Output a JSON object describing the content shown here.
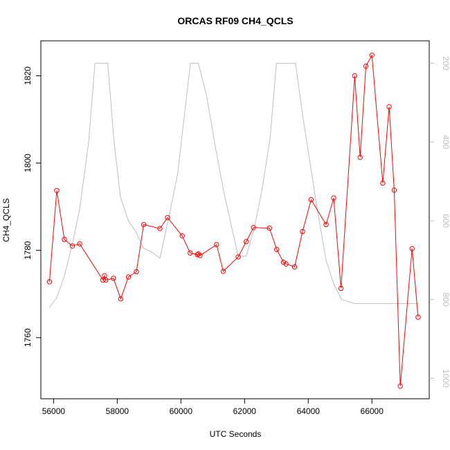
{
  "chart_data": {
    "type": "line",
    "title": "ORCAS RF09 CH4_QCLS",
    "xlabel": "UTC Seconds",
    "ylabel": "CH4_QCLS",
    "xlim": [
      55600,
      67800
    ],
    "ylim": [
      1746,
      1828
    ],
    "y2lim": [
      1052,
      143
    ],
    "x_ticks": [
      56000,
      58000,
      60000,
      62000,
      64000,
      66000
    ],
    "y_ticks": [
      1760,
      1780,
      1800,
      1820
    ],
    "y2_ticks": [
      200,
      400,
      600,
      800,
      1000
    ],
    "grid": false,
    "colors": {
      "main": "#ff0000",
      "secondary": "#bebebe"
    },
    "series": [
      {
        "axis": "left",
        "color": "#ff0000",
        "markers": "open-circle",
        "x": [
          55870,
          56100,
          56340,
          56590,
          56820,
          57550,
          57600,
          57640,
          57880,
          58110,
          58350,
          58600,
          58830,
          59340,
          59580,
          60040,
          60290,
          60520,
          60550,
          60600,
          61120,
          61330,
          61800,
          62050,
          62280,
          62780,
          63010,
          63220,
          63300,
          63570,
          63820,
          64090,
          64560,
          64800,
          65030,
          65460,
          65630,
          65810,
          66000,
          66340,
          66540,
          66700,
          66890,
          67260,
          67450
        ],
        "y": [
          1772.8,
          1793.7,
          1782.5,
          1781.0,
          1781.5,
          1773.2,
          1774.2,
          1773.2,
          1773.6,
          1768.9,
          1773.9,
          1775.1,
          1785.9,
          1785.0,
          1787.5,
          1783.3,
          1779.4,
          1779.0,
          1779.2,
          1778.8,
          1781.3,
          1775.2,
          1778.5,
          1782.0,
          1785.2,
          1785.1,
          1780.2,
          1777.3,
          1776.9,
          1776.2,
          1784.3,
          1791.6,
          1785.9,
          1792.0,
          1771.3,
          1820.0,
          1801.3,
          1822.2,
          1824.7,
          1795.4,
          1812.9,
          1793.8,
          1748.9,
          1780.4,
          1764.7
        ]
      },
      {
        "axis": "right",
        "color": "#bebebe",
        "markers": "none",
        "x": [
          55870,
          56100,
          56340,
          56590,
          56820,
          57100,
          57300,
          57700,
          57900,
          58100,
          58350,
          58600,
          58830,
          59100,
          59340,
          59600,
          59900,
          60040,
          60300,
          60550,
          60800,
          61100,
          61330,
          61550,
          61800,
          62050,
          62300,
          62550,
          62800,
          63000,
          63300,
          63600,
          63820,
          64090,
          64300,
          64560,
          64800,
          65050,
          65460,
          66000,
          66500,
          67000,
          67450
        ],
        "y": [
          820,
          795,
          740,
          660,
          570,
          400,
          200,
          200,
          400,
          540,
          600,
          630,
          670,
          680,
          695,
          600,
          480,
          380,
          200,
          200,
          280,
          420,
          520,
          600,
          690,
          690,
          620,
          520,
          390,
          200,
          200,
          200,
          330,
          470,
          580,
          700,
          760,
          800,
          810,
          810,
          810,
          810,
          810
        ]
      }
    ]
  }
}
